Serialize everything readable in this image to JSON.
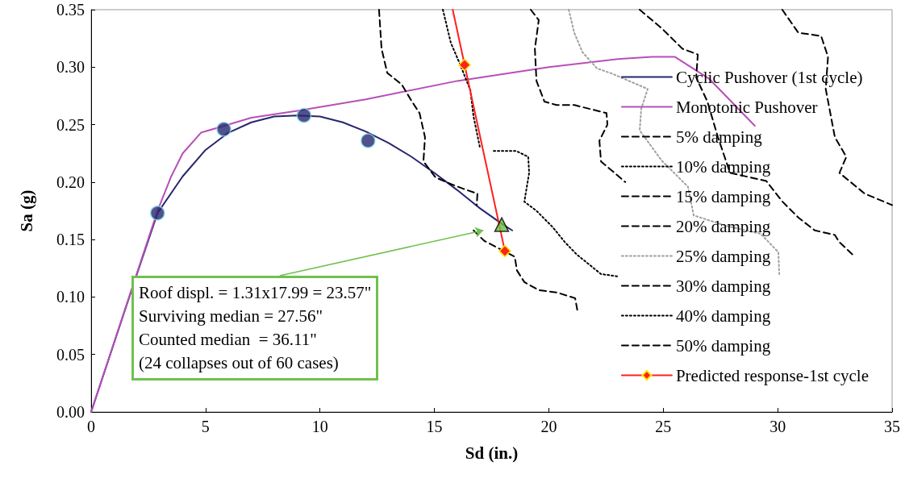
{
  "chart_data": {
    "type": "line",
    "xlabel": "Sd (in.)",
    "ylabel": "Sa (g)",
    "xlim": [
      0,
      35
    ],
    "xticks": [
      0,
      5,
      10,
      15,
      20,
      25,
      30,
      35
    ],
    "ylim": [
      0,
      0.35
    ],
    "yticks": [
      {
        "value": 0,
        "label": "0.00"
      },
      {
        "value": 0.05,
        "label": "0.05"
      },
      {
        "value": 0.1,
        "label": "0.10"
      },
      {
        "value": 0.15,
        "label": "0.15"
      },
      {
        "value": 0.2,
        "label": "0.20"
      },
      {
        "value": 0.25,
        "label": "0.25"
      },
      {
        "value": 0.3,
        "label": "0.30"
      },
      {
        "value": 0.35,
        "label": "0.35"
      }
    ],
    "grid": false,
    "legend": "right",
    "annotations": [
      "Roof displ. = 1.31x17.99 = 23.57\"\nSurviving median = 27.56\"\nCounted median  = 36.11\"\n(24 collapses out of 60 cases)"
    ],
    "series": [
      {
        "name": "Cyclic Pushover (1st cycle)",
        "color": "#26266e",
        "marker": "none",
        "line_style": "solid",
        "x": [
          0,
          1,
          2,
          2.9,
          4,
          5,
          6,
          7,
          8,
          9,
          10,
          11,
          12,
          13,
          14,
          15,
          16,
          17,
          18,
          18.4
        ],
        "values": [
          0,
          0.06,
          0.12,
          0.173,
          0.205,
          0.228,
          0.243,
          0.252,
          0.257,
          0.258,
          0.257,
          0.252,
          0.244,
          0.234,
          0.222,
          0.208,
          0.193,
          0.177,
          0.163,
          0.158
        ]
      },
      {
        "name": "Monotonic Pushover",
        "color": "#b84fb8",
        "marker": "none",
        "line_style": "solid",
        "x": [
          0,
          2.9,
          3.5,
          4,
          4.8,
          6,
          7,
          9,
          12,
          16,
          20,
          23,
          24.5,
          25.5,
          27,
          29
        ],
        "values": [
          0,
          0.175,
          0.205,
          0.225,
          0.243,
          0.25,
          0.256,
          0.262,
          0.272,
          0.288,
          0.3,
          0.307,
          0.309,
          0.309,
          0.29,
          0.249
        ]
      },
      {
        "name": "5% damping",
        "color": "#000000",
        "marker": "none",
        "line_style": "dashed",
        "x": [
          16.71,
          17.17,
          18.51,
          18.61,
          18.93,
          19.56,
          20.34,
          21.15,
          21.25
        ],
        "values": [
          0.158,
          0.149,
          0.135,
          0.123,
          0.113,
          0.106,
          0.104,
          0.099,
          0.088
        ]
      },
      {
        "name": "10% damping",
        "color": "#000000",
        "marker": "none",
        "line_style": "dotted",
        "x": [
          15.37,
          15.72,
          16.11,
          16.57,
          16.71,
          16.99
        ],
        "values": [
          0.35,
          0.321,
          0.303,
          0.28,
          0.257,
          0.23
        ]
      },
      {
        "name": "15% damping",
        "color": "#000000",
        "marker": "none",
        "line_style": "dashed",
        "x": [
          23.97,
          24.92,
          25.84,
          26.51,
          26.44,
          26.93,
          27.39,
          27.92,
          29.5,
          30.21,
          30.91,
          31.62,
          32.5,
          32.68,
          33.38
        ],
        "values": [
          0.35,
          0.334,
          0.316,
          0.311,
          0.291,
          0.27,
          0.239,
          0.208,
          0.201,
          0.183,
          0.169,
          0.158,
          0.154,
          0.148,
          0.135
        ]
      },
      {
        "name": "20% damping",
        "color": "#000000",
        "marker": "none",
        "line_style": "dashed",
        "x": [
          30.2,
          30.9,
          31.9,
          32.2,
          32.1,
          32.5,
          33.0,
          32.7,
          33.8,
          35.0
        ],
        "values": [
          0.35,
          0.33,
          0.327,
          0.309,
          0.281,
          0.239,
          0.222,
          0.208,
          0.19,
          0.18
        ]
      },
      {
        "name": "25% damping",
        "color": "#a0a0a0",
        "marker": "none",
        "line_style": "dotted",
        "x": [
          20.87,
          21.11,
          21.47,
          22.1,
          22.81,
          24.32,
          24.04,
          23.97,
          24.92,
          26.08,
          26.33,
          27.74,
          29.26,
          30.03,
          30.07
        ],
        "values": [
          0.35,
          0.33,
          0.313,
          0.299,
          0.294,
          0.281,
          0.264,
          0.245,
          0.219,
          0.196,
          0.171,
          0.162,
          0.155,
          0.139,
          0.12
        ]
      },
      {
        "name": "30% damping",
        "color": "#000000",
        "marker": "none",
        "line_style": "dashed",
        "x": [
          19.21,
          19.56,
          19.39,
          19.46,
          19.81,
          20.34,
          21.12,
          22.52,
          22.56,
          22.21,
          22.28,
          23.34
        ],
        "values": [
          0.35,
          0.341,
          0.316,
          0.288,
          0.27,
          0.267,
          0.267,
          0.26,
          0.25,
          0.236,
          0.218,
          0.2
        ]
      },
      {
        "name": "40% damping",
        "color": "#000000",
        "marker": "none",
        "line_style": "dotted",
        "x": [
          17.59,
          18.58,
          19.1,
          19.14,
          18.93,
          19.46,
          20.16,
          20.69,
          21.22,
          22.28,
          22.98
        ],
        "values": [
          0.227,
          0.227,
          0.222,
          0.208,
          0.183,
          0.175,
          0.161,
          0.148,
          0.137,
          0.12,
          0.118
        ]
      },
      {
        "name": "50% damping",
        "color": "#000000",
        "marker": "none",
        "line_style": "dashed",
        "x": [
          12.58,
          12.69,
          12.94,
          13.57,
          13.99,
          14.35,
          14.59,
          14.52,
          15.05,
          15.76,
          16.28,
          16.88,
          16.85
        ],
        "values": [
          0.35,
          0.316,
          0.295,
          0.285,
          0.271,
          0.26,
          0.239,
          0.218,
          0.204,
          0.198,
          0.194,
          0.19,
          0.18
        ]
      },
      {
        "name": "Predicted response-1st cycle",
        "color": "#ff2020",
        "marker": "diamond",
        "line_style": "solid",
        "x": [
          16.32,
          18.08
        ],
        "values": [
          0.302,
          0.14
        ]
      },
      {
        "color": "#ff2020",
        "marker": "none",
        "line_style": "solid",
        "x": [
          15.8,
          16.32
        ],
        "values": [
          0.35,
          0.302
        ]
      },
      {
        "type": "scatter",
        "color": "#26266e",
        "marker": "circle",
        "x": [
          2.9,
          5.8,
          9.3,
          12.1
        ],
        "values": [
          0.173,
          0.246,
          0.258,
          0.236
        ]
      },
      {
        "type": "scatter",
        "color": "#6abf40",
        "marker": "triangle",
        "x": [
          17.94
        ],
        "values": [
          0.163
        ]
      }
    ]
  }
}
